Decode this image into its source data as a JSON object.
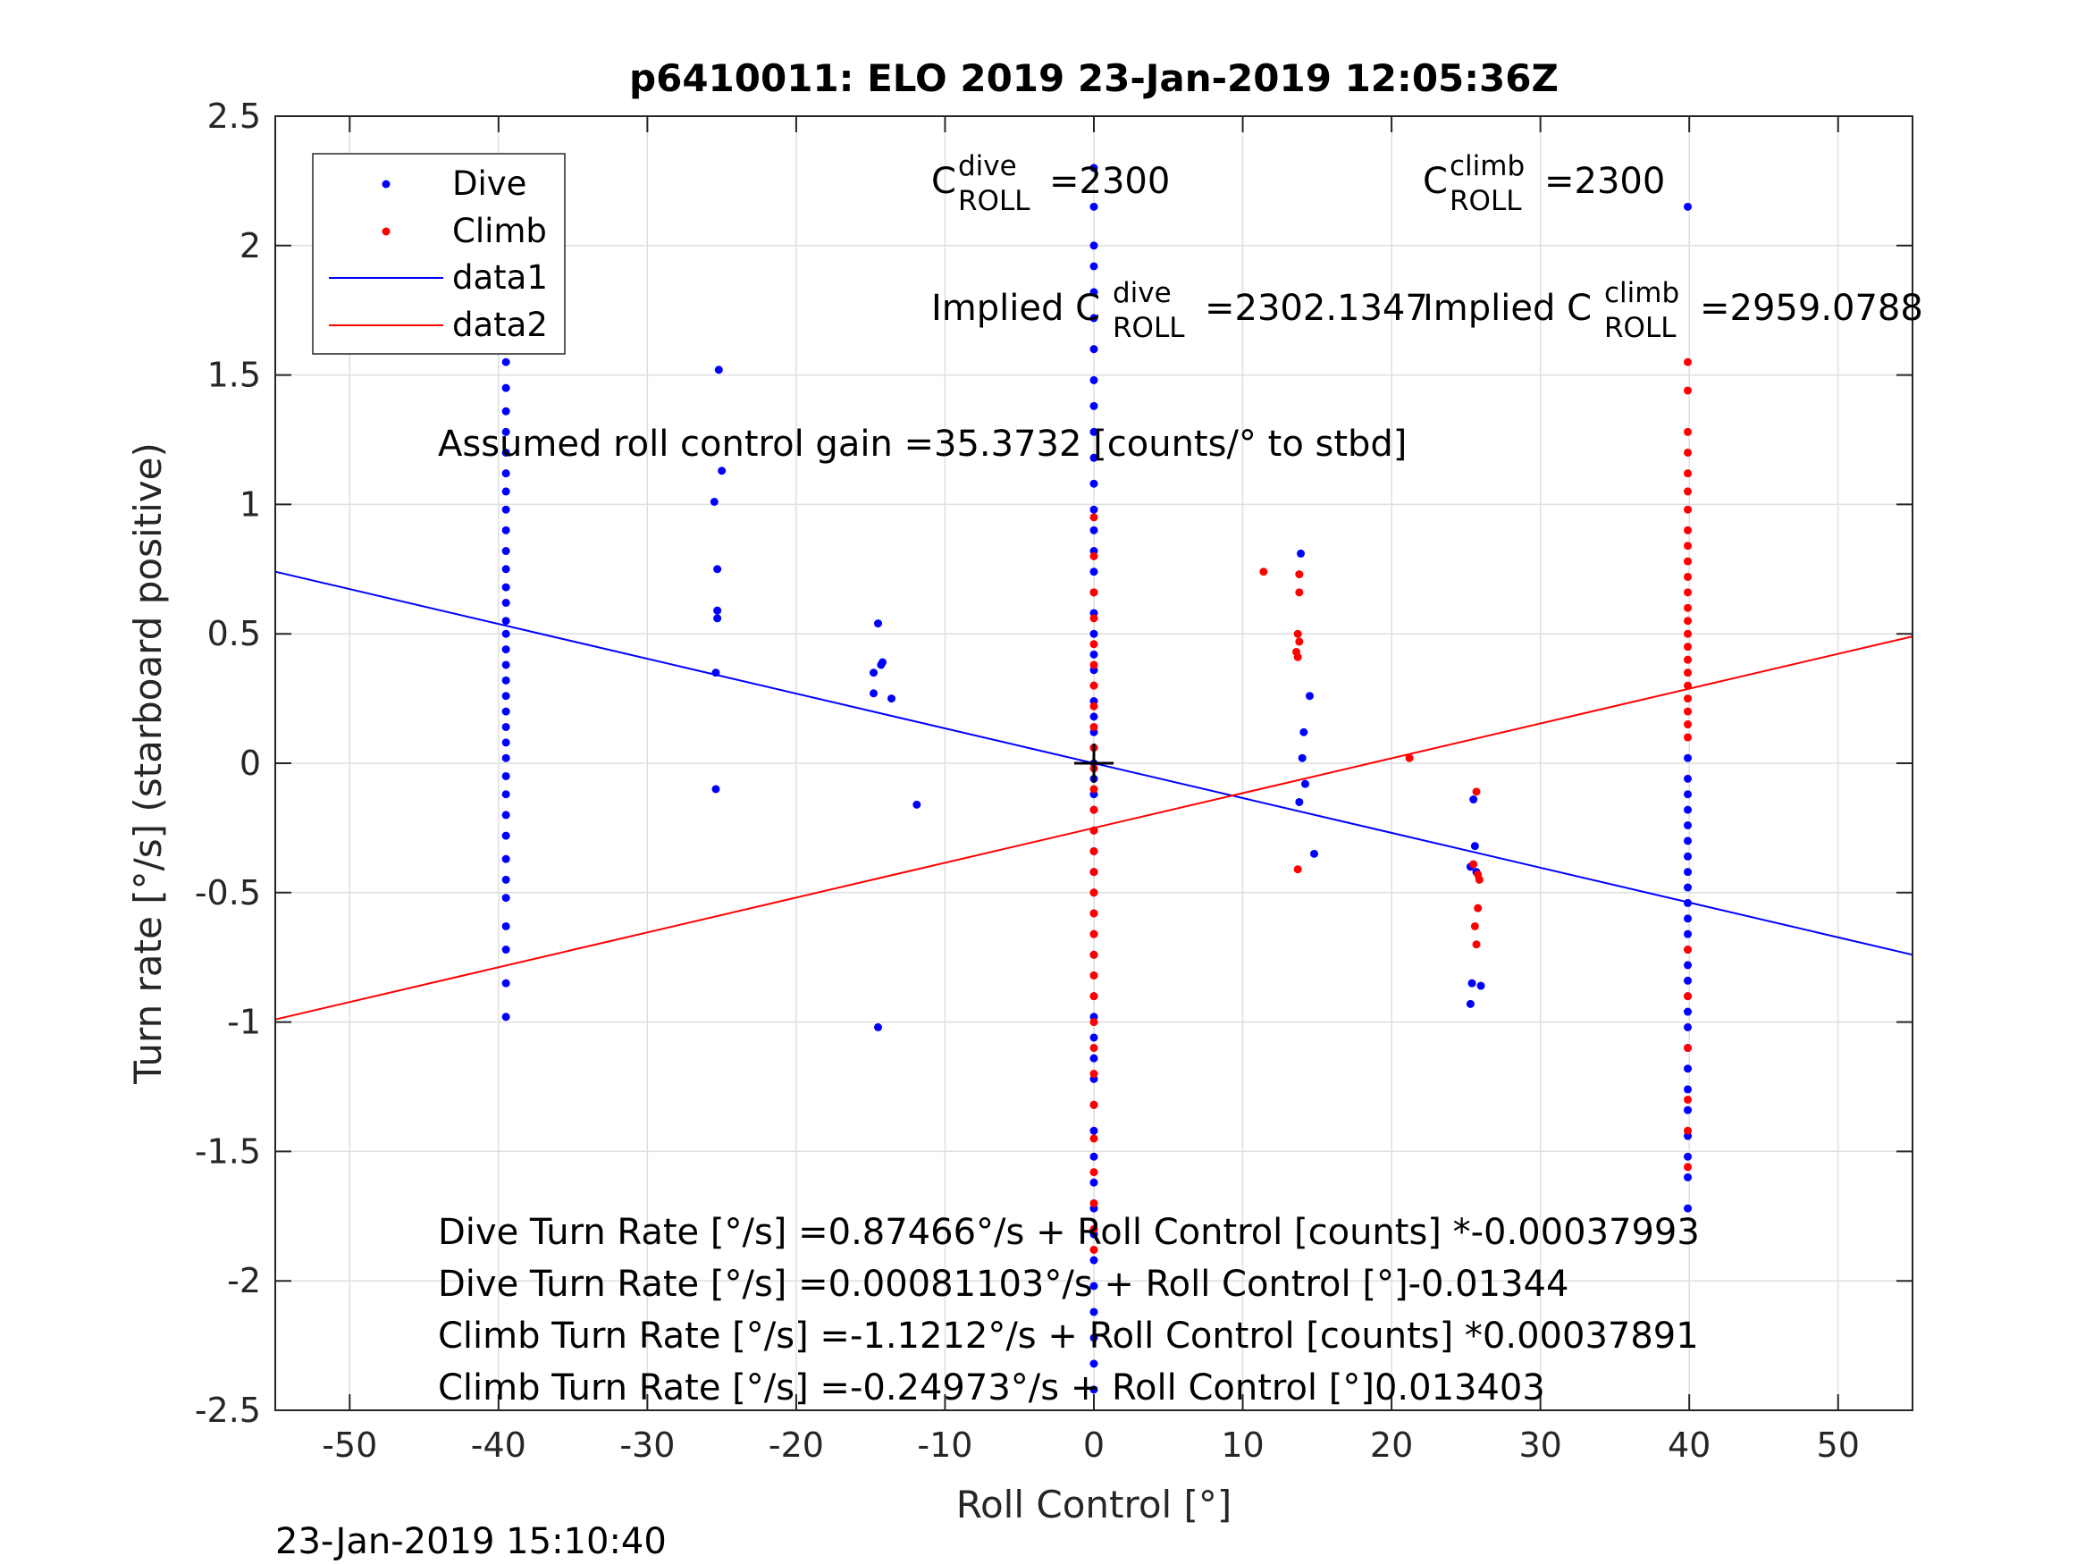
{
  "chart_data": {
    "type": "scatter",
    "title": "p6410011: ELO 2019 23-Jan-2019 12:05:36Z",
    "xlabel": "Roll Control [°]",
    "ylabel": "Turn rate [°/s] (starboard positive)",
    "xlim": [
      -55,
      55
    ],
    "ylim": [
      -2.5,
      2.5
    ],
    "xticks": [
      -50,
      -40,
      -30,
      -20,
      -10,
      0,
      10,
      20,
      30,
      40,
      50
    ],
    "yticks": [
      -2.5,
      -2,
      -1.5,
      -1,
      -0.5,
      0,
      0.5,
      1,
      1.5,
      2,
      2.5
    ],
    "xtick_labels": [
      "-50",
      "-40",
      "-30",
      "-20",
      "-10",
      "0",
      "10",
      "20",
      "30",
      "40",
      "50"
    ],
    "ytick_labels": [
      "-2.5",
      "-2",
      "-1.5",
      "-1",
      "-0.5",
      "0",
      "0.5",
      "1",
      "1.5",
      "2",
      "2.5"
    ],
    "grid": true,
    "legend_position": "top-left",
    "legend": [
      {
        "label": "Dive",
        "kind": "marker",
        "color": "#0000ff"
      },
      {
        "label": "Climb",
        "kind": "marker",
        "color": "#ff0000"
      },
      {
        "label": "data1",
        "kind": "line",
        "color": "#0000ff"
      },
      {
        "label": "data2",
        "kind": "line",
        "color": "#ff0000"
      }
    ],
    "series": [
      {
        "name": "Dive",
        "color": "#0000ff",
        "points": [
          [
            -39.5,
            1.92
          ],
          [
            -39.5,
            1.85
          ],
          [
            -39.5,
            1.78
          ],
          [
            -39.5,
            1.7
          ],
          [
            -39.5,
            1.62
          ],
          [
            -39.5,
            1.55
          ],
          [
            -39.5,
            1.45
          ],
          [
            -39.5,
            1.36
          ],
          [
            -39.5,
            1.28
          ],
          [
            -39.5,
            1.2
          ],
          [
            -39.5,
            1.12
          ],
          [
            -39.5,
            1.05
          ],
          [
            -39.5,
            0.98
          ],
          [
            -39.5,
            0.9
          ],
          [
            -39.5,
            0.82
          ],
          [
            -39.5,
            0.75
          ],
          [
            -39.5,
            0.68
          ],
          [
            -39.5,
            0.62
          ],
          [
            -39.5,
            0.55
          ],
          [
            -39.5,
            0.5
          ],
          [
            -39.5,
            0.44
          ],
          [
            -39.5,
            0.38
          ],
          [
            -39.5,
            0.32
          ],
          [
            -39.5,
            0.26
          ],
          [
            -39.5,
            0.2
          ],
          [
            -39.5,
            0.14
          ],
          [
            -39.5,
            0.08
          ],
          [
            -39.5,
            0.02
          ],
          [
            -39.5,
            -0.05
          ],
          [
            -39.5,
            -0.12
          ],
          [
            -39.5,
            -0.2
          ],
          [
            -39.5,
            -0.28
          ],
          [
            -39.5,
            -0.37
          ],
          [
            -39.5,
            -0.45
          ],
          [
            -39.5,
            -0.52
          ],
          [
            -39.5,
            -0.63
          ],
          [
            -39.5,
            -0.72
          ],
          [
            -39.5,
            -0.85
          ],
          [
            -39.5,
            -0.98
          ],
          [
            -25.2,
            1.52
          ],
          [
            -25.0,
            1.13
          ],
          [
            -25.5,
            1.01
          ],
          [
            -25.3,
            0.75
          ],
          [
            -25.3,
            0.59
          ],
          [
            -25.3,
            0.56
          ],
          [
            -25.4,
            0.35
          ],
          [
            -25.4,
            -0.1
          ],
          [
            -14.5,
            0.54
          ],
          [
            -14.8,
            0.35
          ],
          [
            -14.2,
            0.39
          ],
          [
            -14.3,
            0.38
          ],
          [
            -14.8,
            0.27
          ],
          [
            -13.6,
            0.25
          ],
          [
            -11.9,
            -0.16
          ],
          [
            -14.5,
            -1.02
          ],
          [
            0,
            2.3
          ],
          [
            0,
            2.15
          ],
          [
            0,
            2.0
          ],
          [
            0,
            1.92
          ],
          [
            0,
            1.82
          ],
          [
            0,
            1.72
          ],
          [
            0,
            1.6
          ],
          [
            0,
            1.48
          ],
          [
            0,
            1.38
          ],
          [
            0,
            1.28
          ],
          [
            0,
            1.18
          ],
          [
            0,
            1.08
          ],
          [
            0,
            0.98
          ],
          [
            0,
            0.9
          ],
          [
            0,
            0.82
          ],
          [
            0,
            0.74
          ],
          [
            0,
            0.66
          ],
          [
            0,
            0.58
          ],
          [
            0,
            0.5
          ],
          [
            0,
            0.42
          ],
          [
            0,
            0.36
          ],
          [
            0,
            0.3
          ],
          [
            0,
            0.24
          ],
          [
            0,
            0.18
          ],
          [
            0,
            0.12
          ],
          [
            0,
            0.06
          ],
          [
            0,
            0.0
          ],
          [
            0,
            -0.06
          ],
          [
            0,
            -0.12
          ],
          [
            0,
            -0.18
          ],
          [
            0,
            -0.26
          ],
          [
            0,
            -0.34
          ],
          [
            0,
            -0.42
          ],
          [
            0,
            -0.5
          ],
          [
            0,
            -0.58
          ],
          [
            0,
            -0.66
          ],
          [
            0,
            -0.74
          ],
          [
            0,
            -0.82
          ],
          [
            0,
            -0.9
          ],
          [
            0,
            -0.98
          ],
          [
            0,
            -1.06
          ],
          [
            0,
            -1.14
          ],
          [
            0,
            -1.22
          ],
          [
            0,
            -1.32
          ],
          [
            0,
            -1.42
          ],
          [
            0,
            -1.52
          ],
          [
            0,
            -1.62
          ],
          [
            0,
            -1.72
          ],
          [
            0,
            -1.82
          ],
          [
            0,
            -1.92
          ],
          [
            0,
            -2.02
          ],
          [
            0,
            -2.12
          ],
          [
            0,
            -2.22
          ],
          [
            0,
            -2.32
          ],
          [
            0,
            -2.42
          ],
          [
            13.9,
            0.81
          ],
          [
            14.5,
            0.26
          ],
          [
            14.1,
            0.12
          ],
          [
            14.0,
            0.02
          ],
          [
            14.2,
            -0.08
          ],
          [
            13.8,
            -0.15
          ],
          [
            14.8,
            -0.35
          ],
          [
            25.5,
            -0.14
          ],
          [
            25.6,
            -0.32
          ],
          [
            25.7,
            -0.42
          ],
          [
            25.3,
            -0.4
          ],
          [
            25.4,
            -0.85
          ],
          [
            25.3,
            -0.93
          ],
          [
            26.0,
            -0.86
          ],
          [
            39.9,
            2.15
          ],
          [
            39.9,
            0.02
          ],
          [
            39.9,
            -0.06
          ],
          [
            39.9,
            -0.12
          ],
          [
            39.9,
            -0.18
          ],
          [
            39.9,
            -0.24
          ],
          [
            39.9,
            -0.3
          ],
          [
            39.9,
            -0.36
          ],
          [
            39.9,
            -0.42
          ],
          [
            39.9,
            -0.48
          ],
          [
            39.9,
            -0.54
          ],
          [
            39.9,
            -0.6
          ],
          [
            39.9,
            -0.66
          ],
          [
            39.9,
            -0.72
          ],
          [
            39.9,
            -0.78
          ],
          [
            39.9,
            -0.84
          ],
          [
            39.9,
            -0.9
          ],
          [
            39.9,
            -0.96
          ],
          [
            39.9,
            -1.02
          ],
          [
            39.9,
            -1.1
          ],
          [
            39.9,
            -1.18
          ],
          [
            39.9,
            -1.26
          ],
          [
            39.9,
            -1.34
          ],
          [
            39.9,
            -1.44
          ],
          [
            39.9,
            -1.52
          ],
          [
            39.9,
            -1.6
          ],
          [
            39.9,
            -1.72
          ]
        ]
      },
      {
        "name": "Climb",
        "color": "#ff0000",
        "points": [
          [
            0,
            0.95
          ],
          [
            0,
            0.8
          ],
          [
            0,
            0.66
          ],
          [
            0,
            0.56
          ],
          [
            0,
            0.46
          ],
          [
            0,
            0.38
          ],
          [
            0,
            0.3
          ],
          [
            0,
            0.22
          ],
          [
            0,
            0.14
          ],
          [
            0,
            0.06
          ],
          [
            0,
            -0.02
          ],
          [
            0,
            -0.1
          ],
          [
            0,
            -0.18
          ],
          [
            0,
            -0.26
          ],
          [
            0,
            -0.34
          ],
          [
            0,
            -0.42
          ],
          [
            0,
            -0.5
          ],
          [
            0,
            -0.58
          ],
          [
            0,
            -0.66
          ],
          [
            0,
            -0.74
          ],
          [
            0,
            -0.82
          ],
          [
            0,
            -0.9
          ],
          [
            0,
            -1.0
          ],
          [
            0,
            -1.1
          ],
          [
            0,
            -1.2
          ],
          [
            0,
            -1.32
          ],
          [
            0,
            -1.45
          ],
          [
            0,
            -1.58
          ],
          [
            0,
            -1.7
          ],
          [
            0,
            -1.8
          ],
          [
            0,
            -1.88
          ],
          [
            11.4,
            0.74
          ],
          [
            13.8,
            0.73
          ],
          [
            13.8,
            0.66
          ],
          [
            13.7,
            0.5
          ],
          [
            13.8,
            0.47
          ],
          [
            13.6,
            0.43
          ],
          [
            13.7,
            0.41
          ],
          [
            13.7,
            -0.41
          ],
          [
            21.2,
            0.02
          ],
          [
            25.7,
            -0.11
          ],
          [
            25.5,
            -0.39
          ],
          [
            25.8,
            -0.43
          ],
          [
            25.9,
            -0.45
          ],
          [
            25.8,
            -0.56
          ],
          [
            25.6,
            -0.63
          ],
          [
            25.7,
            -0.7
          ],
          [
            39.9,
            1.55
          ],
          [
            39.9,
            1.44
          ],
          [
            39.9,
            1.28
          ],
          [
            39.9,
            1.2
          ],
          [
            39.9,
            1.12
          ],
          [
            39.9,
            1.05
          ],
          [
            39.9,
            0.98
          ],
          [
            39.9,
            0.9
          ],
          [
            39.9,
            0.84
          ],
          [
            39.9,
            0.78
          ],
          [
            39.9,
            0.72
          ],
          [
            39.9,
            0.66
          ],
          [
            39.9,
            0.6
          ],
          [
            39.9,
            0.55
          ],
          [
            39.9,
            0.5
          ],
          [
            39.9,
            0.45
          ],
          [
            39.9,
            0.4
          ],
          [
            39.9,
            0.35
          ],
          [
            39.9,
            0.3
          ],
          [
            39.9,
            0.25
          ],
          [
            39.9,
            0.2
          ],
          [
            39.9,
            0.15
          ],
          [
            39.9,
            0.1
          ],
          [
            39.9,
            -0.72
          ],
          [
            39.9,
            -0.9
          ],
          [
            39.9,
            -1.1
          ],
          [
            39.9,
            -1.3
          ],
          [
            39.9,
            -1.42
          ],
          [
            39.9,
            -1.56
          ]
        ]
      },
      {
        "name": "data1",
        "color": "#0000ff",
        "line": [
          [
            -55,
            0.74
          ],
          [
            55,
            -0.74
          ]
        ]
      },
      {
        "name": "data2",
        "color": "#ff0000",
        "line": [
          [
            -55,
            -0.99
          ],
          [
            55,
            0.49
          ]
        ]
      }
    ],
    "origin_marker": [
      0,
      0
    ],
    "annotations": {
      "c_dive_base": "C",
      "c_dive_sup": "dive",
      "c_dive_sub": "ROLL",
      "c_dive_value": "=2300",
      "c_climb_base": "C",
      "c_climb_sup": "climb",
      "c_climb_sub": "ROLL",
      "c_climb_value": "=2300",
      "implied_dive_prefix": "Implied C",
      "implied_dive_sup": "dive",
      "implied_dive_sub": "ROLL",
      "implied_dive_value": "=2302.1347",
      "implied_climb_prefix": "Implied C",
      "implied_climb_sup": "climb",
      "implied_climb_sub": "ROLL",
      "implied_climb_value": "=2959.0788",
      "gain": "Assumed roll control gain =35.3732 [counts/° to stbd]",
      "eq1": "Dive Turn Rate [°/s] =0.87466°/s + Roll Control [counts] *-0.00037993",
      "eq2": "Dive Turn Rate [°/s] =0.00081103°/s + Roll Control [°]-0.01344",
      "eq3": "Climb Turn Rate [°/s] =-1.1212°/s + Roll Control [counts] *0.00037891",
      "eq4": "Climb Turn Rate [°/s] =-0.24973°/s + Roll Control [°]0.013403"
    },
    "footer_timestamp": "23-Jan-2019 15:10:40"
  }
}
